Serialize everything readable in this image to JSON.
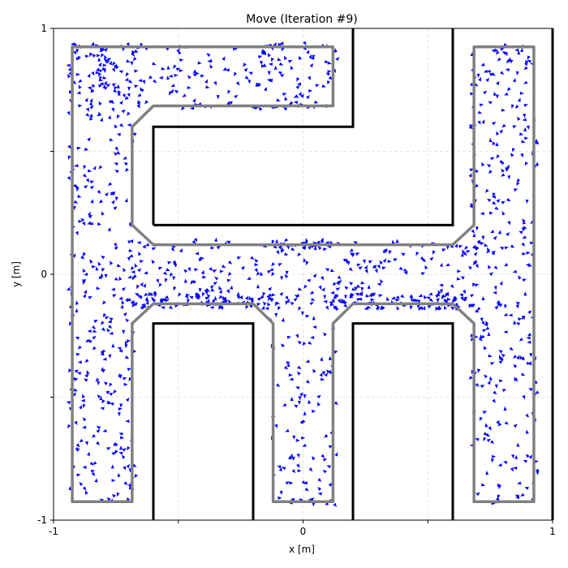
{
  "chart_data": {
    "type": "scatter",
    "title": "Move (Iteration #9)",
    "xlabel": "x [m]",
    "ylabel": "y [m]",
    "xlim": [
      -1,
      1
    ],
    "ylim": [
      -1,
      1
    ],
    "xticks": [
      -1,
      -0.5,
      0,
      0.5,
      1
    ],
    "yticks": [
      -1,
      -0.5,
      0,
      0.5,
      1
    ],
    "xtick_labels": [
      "-1",
      "",
      "0",
      "",
      "1"
    ],
    "ytick_labels": [
      "-1",
      "",
      "0",
      "",
      "1"
    ],
    "grid": true,
    "colors": {
      "walls": "#000000",
      "path": "#808080",
      "particles": "#0000ff",
      "grid": "#dddddd"
    },
    "walls": [
      [
        [
          -0.6,
          -1
        ],
        [
          -0.6,
          -0.2
        ],
        [
          -0.2,
          -0.2
        ],
        [
          -0.2,
          -1
        ]
      ],
      [
        [
          0.2,
          -1
        ],
        [
          0.2,
          -0.2
        ],
        [
          0.6,
          -0.2
        ],
        [
          0.6,
          -1
        ]
      ],
      [
        [
          -0.6,
          0.2
        ],
        [
          0.6,
          0.2
        ],
        [
          0.6,
          1
        ]
      ],
      [
        [
          -0.6,
          0.2
        ],
        [
          -0.6,
          0.6
        ],
        [
          0.2,
          0.6
        ],
        [
          0.2,
          1
        ]
      ],
      [
        [
          1,
          -1
        ],
        [
          1,
          1
        ]
      ]
    ],
    "path_outline": {
      "outer": [
        [
          -0.925,
          0.925
        ],
        [
          0.12,
          0.925
        ],
        [
          0.12,
          0.685
        ],
        [
          -0.6,
          0.685
        ],
        [
          -0.685,
          0.6
        ],
        [
          -0.685,
          0.2
        ],
        [
          -0.6,
          0.12
        ],
        [
          0.6,
          0.12
        ],
        [
          0.685,
          0.2
        ],
        [
          0.685,
          0.925
        ],
        [
          0.925,
          0.925
        ],
        [
          0.925,
          -0.925
        ],
        [
          0.685,
          -0.925
        ],
        [
          0.685,
          -0.2
        ],
        [
          0.6,
          -0.12
        ],
        [
          0.2,
          -0.12
        ],
        [
          0.12,
          -0.2
        ],
        [
          0.12,
          -0.925
        ],
        [
          -0.12,
          -0.925
        ],
        [
          -0.12,
          -0.2
        ],
        [
          -0.2,
          -0.12
        ],
        [
          -0.6,
          -0.12
        ],
        [
          -0.685,
          -0.2
        ],
        [
          -0.685,
          -0.925
        ],
        [
          -0.925,
          -0.925
        ]
      ],
      "corner_radius": 0.08
    },
    "particles": {
      "count": 1400,
      "marker": "triangle",
      "regions": [
        {
          "x": [
            -0.94,
            -0.67
          ],
          "y": [
            -0.94,
            0.94
          ],
          "weight": 0.22
        },
        {
          "x": [
            -0.94,
            0.14
          ],
          "y": [
            0.67,
            0.94
          ],
          "weight": 0.16
        },
        {
          "x": [
            -0.7,
            0.7
          ],
          "y": [
            -0.14,
            0.14
          ],
          "weight": 0.2
        },
        {
          "x": [
            0.67,
            0.94
          ],
          "y": [
            -0.94,
            0.94
          ],
          "weight": 0.22
        },
        {
          "x": [
            -0.14,
            0.14
          ],
          "y": [
            -0.94,
            -0.1
          ],
          "weight": 0.08
        },
        {
          "x": [
            -0.12,
            0.12
          ],
          "y": [
            0.1,
            0.14
          ],
          "weight": 0.02
        },
        {
          "x": [
            0.1,
            0.7
          ],
          "y": [
            -0.14,
            -0.08
          ],
          "weight": 0.05
        },
        {
          "x": [
            -0.7,
            -0.1
          ],
          "y": [
            -0.14,
            -0.08
          ],
          "weight": 0.05
        }
      ]
    }
  }
}
